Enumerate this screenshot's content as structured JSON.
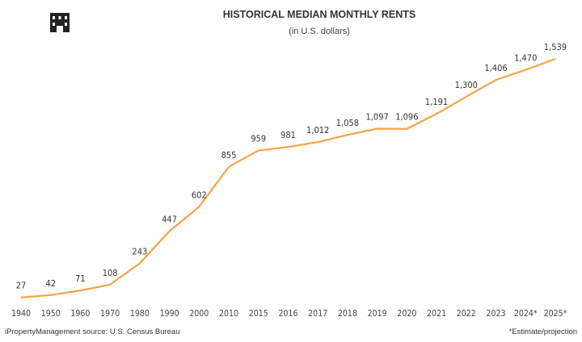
{
  "header": {
    "title": "HISTORICAL MEDIAN MONTHLY RENTS",
    "subtitle": "(in U.S. dollars)",
    "logo_icon": "building-icon"
  },
  "footer": {
    "source": "iPropertyManagement source: U.S. Census Bureau",
    "note": "*Estimate/projection"
  },
  "chart_data": {
    "type": "line",
    "title": "HISTORICAL MEDIAN MONTHLY RENTS",
    "subtitle": "(in U.S. dollars)",
    "categories": [
      "1940",
      "1950",
      "1960",
      "1970",
      "1980",
      "1990",
      "2000",
      "2010",
      "2015",
      "2016",
      "2017",
      "2018",
      "2019",
      "2020",
      "2021",
      "2022",
      "2023",
      "2024*",
      "2025*"
    ],
    "values": [
      27,
      42,
      71,
      108,
      243,
      447,
      602,
      855,
      959,
      981,
      1012,
      1058,
      1097,
      1096,
      1191,
      1300,
      1406,
      1470,
      1539
    ],
    "labels": [
      "27",
      "42",
      "71",
      "108",
      "243",
      "447",
      "602",
      "855",
      "959",
      "981",
      "1,012",
      "1,058",
      "1,097",
      "1,096",
      "1,191",
      "1,300",
      "1,406",
      "1,470",
      "1,539"
    ],
    "line_color": "#F5A447",
    "grid": false
  }
}
